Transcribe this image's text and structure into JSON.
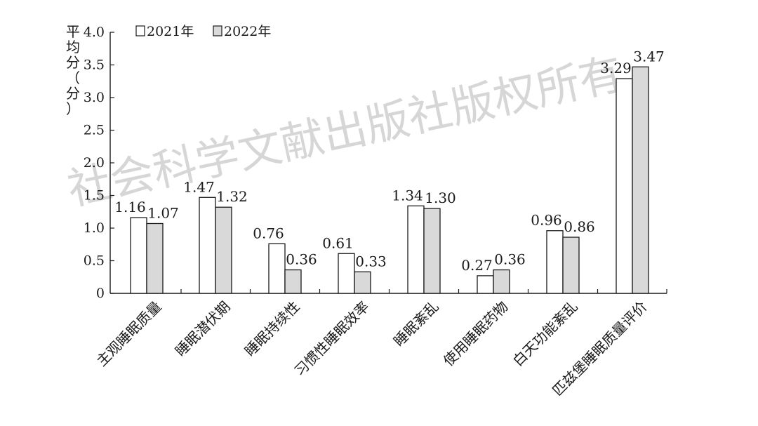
{
  "chart_data": {
    "type": "bar",
    "ylabel": "平均分（分）",
    "ylim": [
      0,
      4.0
    ],
    "yticks": [
      "0",
      "0.5",
      "1.0",
      "1.5",
      "2.0",
      "2.5",
      "3.0",
      "3.5",
      "4.0"
    ],
    "categories": [
      "主观睡眠质量",
      "睡眠潜伏期",
      "睡眠持续性",
      "习惯性睡眠效率",
      "睡眠紊乱",
      "使用睡眠药物",
      "白天功能紊乱",
      "匹兹堡睡眠质量评价"
    ],
    "series": [
      {
        "name": "2021年",
        "values": [
          1.16,
          1.47,
          0.76,
          0.61,
          1.34,
          0.27,
          0.96,
          3.29
        ],
        "labels": [
          "1.16",
          "1.47",
          "0.76",
          "0.61",
          "1.34",
          "0.27",
          "0.96",
          "3.29"
        ],
        "color": "#ffffff"
      },
      {
        "name": "2022年",
        "values": [
          1.07,
          1.32,
          0.36,
          0.33,
          1.3,
          0.36,
          0.86,
          3.47
        ],
        "labels": [
          "1.07",
          "1.32",
          "0.36",
          "0.33",
          "1.30",
          "0.36",
          "0.86",
          "3.47"
        ],
        "color": "#d9d9d9"
      }
    ],
    "legend": "top-left",
    "grid": false
  },
  "watermark": "社会科学文献出版社版权所有"
}
